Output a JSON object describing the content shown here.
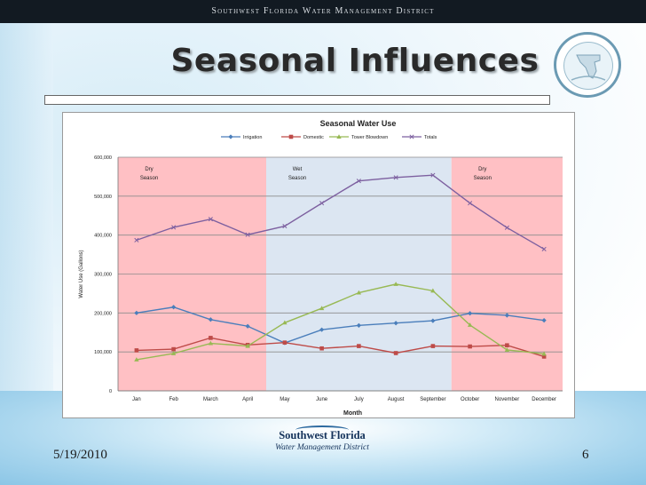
{
  "header": {
    "org_banner": "Southwest Florida Water Management District"
  },
  "slide": {
    "title": "Seasonal Influences",
    "date": "5/19/2010",
    "page_number": "6"
  },
  "logo": {
    "line1": "Southwest Florida",
    "line2": "Water Management District"
  },
  "chart_data": {
    "type": "line",
    "title": "Seasonal Water Use",
    "xlabel": "Month",
    "ylabel": "Water Use (Gallons)",
    "ylim": [
      0,
      600000
    ],
    "yticks": [
      0,
      100000,
      200000,
      300000,
      400000,
      500000,
      600000
    ],
    "ytick_labels": [
      "0",
      "100,000",
      "200,000",
      "300,000",
      "400,000",
      "500,000",
      "600,000"
    ],
    "grid": true,
    "legend": "top",
    "categories": [
      "Jan",
      "Feb",
      "March",
      "April",
      "May",
      "June",
      "July",
      "August",
      "September",
      "October",
      "November",
      "December"
    ],
    "series": [
      {
        "name": "Irrigation",
        "color": "#4a7ebb",
        "marker": "diamond",
        "values": [
          200000,
          215000,
          183000,
          166000,
          123000,
          157000,
          168000,
          174000,
          180000,
          199000,
          194000,
          181000
        ]
      },
      {
        "name": "Domestic",
        "color": "#be4b48",
        "marker": "square",
        "values": [
          104000,
          107000,
          136000,
          118000,
          124000,
          109000,
          115000,
          97000,
          115000,
          114000,
          117000,
          88000
        ]
      },
      {
        "name": "Tower Blowdown",
        "color": "#98b954",
        "marker": "triangle",
        "values": [
          80000,
          96000,
          122000,
          115000,
          175000,
          212000,
          252000,
          274000,
          257000,
          169000,
          105000,
          95000
        ]
      },
      {
        "name": "Totals",
        "color": "#7d60a0",
        "marker": "x",
        "values": [
          387000,
          420000,
          441000,
          401000,
          423000,
          482000,
          539000,
          548000,
          554000,
          482000,
          419000,
          364000
        ]
      }
    ],
    "seasons": [
      {
        "label_line1": "Dry",
        "label_line2": "Season",
        "start_index": 0,
        "end_index": 4,
        "color": "#ffc0c4"
      },
      {
        "label_line1": "Wet",
        "label_line2": "Season",
        "start_index": 4,
        "end_index": 9,
        "color": "#dce6f2"
      },
      {
        "label_line1": "Dry",
        "label_line2": "Season",
        "start_index": 9,
        "end_index": 12,
        "color": "#ffc0c4"
      }
    ]
  }
}
